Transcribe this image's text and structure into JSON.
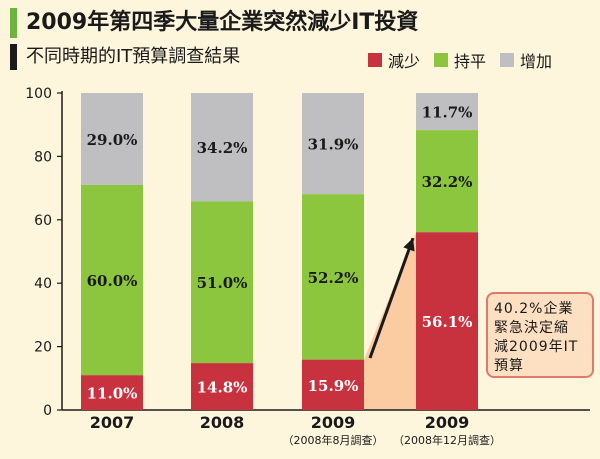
{
  "title": "2009年第四季大量企業突然減少IT投資",
  "subtitle": "不同時期的IT預算調查結果",
  "callout": "40.2%企業\n緊急決定縮\n減2009年IT\n預算",
  "colors": {
    "decrease": "#c8323f",
    "flat": "#8cc63e",
    "increase": "#bfbfc1",
    "callout_fill": "#fbc79b",
    "title_accent": "#6cb33f"
  },
  "chart_data": {
    "type": "bar",
    "stacked": true,
    "ylim": [
      0,
      100
    ],
    "yticks": [
      0,
      20,
      40,
      60,
      80,
      100
    ],
    "categories": [
      "2007",
      "2008",
      "2009",
      "2009"
    ],
    "category_sublabels": [
      "",
      "",
      "（2008年8月調查）",
      "（2008年12月調查）"
    ],
    "series": [
      {
        "name": "減少",
        "color": "#c8323f",
        "values": [
          11.0,
          14.8,
          15.9,
          56.1
        ],
        "labels": [
          "11.0%",
          "14.8%",
          "15.9%",
          "56.1%"
        ]
      },
      {
        "name": "持平",
        "color": "#8cc63e",
        "values": [
          60.0,
          51.0,
          52.2,
          32.2
        ],
        "labels": [
          "60.0%",
          "51.0%",
          "52.2%",
          "32.2%"
        ]
      },
      {
        "name": "增加",
        "color": "#bfbfc1",
        "values": [
          29.0,
          34.2,
          31.9,
          11.7
        ],
        "labels": [
          "29.0%",
          "34.2%",
          "31.9%",
          "11.7%"
        ]
      }
    ],
    "legend_position": "top-right",
    "grid": false
  }
}
